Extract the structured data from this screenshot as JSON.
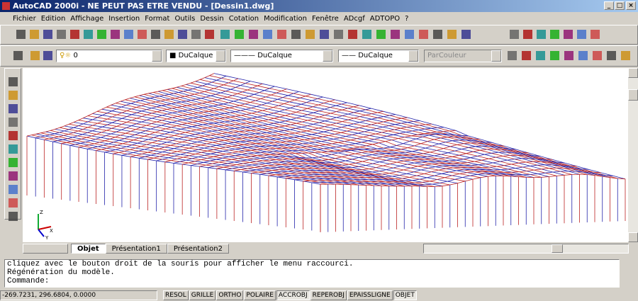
{
  "window": {
    "title": "AutoCAD 2000i - NE PEUT PAS ETRE VENDU - [Dessin1.dwg]"
  },
  "menu": [
    "Fichier",
    "Edition",
    "Affichage",
    "Insertion",
    "Format",
    "Outils",
    "Dessin",
    "Cotation",
    "Modification",
    "Fenêtre",
    "ADcgf",
    "ADTOPO",
    "?"
  ],
  "properties": {
    "layer": "0",
    "color": "DuCalque",
    "linetype": "DuCalque",
    "lineweight": "DuCalque",
    "plotstyle": "ParCouleur"
  },
  "ucs_icon": {
    "z": "Z",
    "x": "X",
    "y": "Y"
  },
  "tabs": [
    {
      "label": "Objet",
      "active": true
    },
    {
      "label": "Présentation1",
      "active": false
    },
    {
      "label": "Présentation2",
      "active": false
    }
  ],
  "command_lines": [
    "cliquez avec le bouton droit de la souris pour afficher le menu raccourci.",
    "Régénération du modèle.",
    "Commande:"
  ],
  "status": {
    "coordinates": "-269.7231, 296.6804, 0.0000",
    "buttons": [
      {
        "label": "RESOL",
        "pressed": false
      },
      {
        "label": "GRILLE",
        "pressed": false
      },
      {
        "label": "ORTHO",
        "pressed": false
      },
      {
        "label": "POLAIRE",
        "pressed": false
      },
      {
        "label": "ACCROBJ",
        "pressed": true
      },
      {
        "label": "REPEROBJ",
        "pressed": false
      },
      {
        "label": "EPAISSLIGNE",
        "pressed": false
      },
      {
        "label": "OBJET",
        "pressed": true
      }
    ]
  }
}
